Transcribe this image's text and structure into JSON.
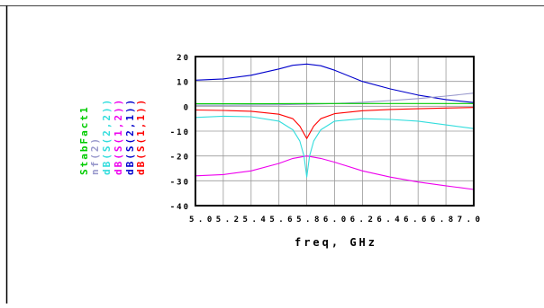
{
  "chart_data": {
    "type": "line",
    "xlabel": "freq, GHz",
    "xlim": [
      5.0,
      7.0
    ],
    "ylim": [
      -40,
      20
    ],
    "xticks": [
      "5.0",
      "5.2",
      "5.4",
      "5.6",
      "5.8",
      "6.0",
      "6.2",
      "6.4",
      "6.6",
      "6.8",
      "7.0"
    ],
    "yticks": [
      "20",
      "10",
      "0",
      "-10",
      "-20",
      "-30",
      "-40"
    ],
    "xticks_text": "5.05.25.45.65.86.06.26.46.66.87.0",
    "grid": true,
    "legend_placement": "left, rotated vertical",
    "series": [
      {
        "name": "dB(S(1,1))",
        "color": "#ff0000",
        "x": [
          5.0,
          5.2,
          5.4,
          5.6,
          5.7,
          5.75,
          5.8,
          5.85,
          5.9,
          6.0,
          6.2,
          6.4,
          6.6,
          6.8,
          7.0
        ],
        "y": [
          -1.5,
          -1.7,
          -2.0,
          -3.2,
          -5.0,
          -8.0,
          -13.0,
          -8.0,
          -5.0,
          -3.0,
          -1.8,
          -1.3,
          -1.0,
          -0.7,
          -0.5
        ]
      },
      {
        "name": "dB(S(2,1))",
        "color": "#0000cc",
        "x": [
          5.0,
          5.2,
          5.4,
          5.6,
          5.7,
          5.8,
          5.9,
          6.0,
          6.2,
          6.4,
          6.6,
          6.8,
          7.0
        ],
        "y": [
          10.5,
          11.0,
          12.5,
          15.0,
          16.5,
          17.0,
          16.3,
          14.5,
          10.0,
          7.0,
          4.5,
          2.7,
          1.5
        ]
      },
      {
        "name": "dB(S(1,2))",
        "color": "#ee00ee",
        "x": [
          5.0,
          5.2,
          5.4,
          5.6,
          5.7,
          5.8,
          5.9,
          6.0,
          6.2,
          6.4,
          6.6,
          6.8,
          7.0
        ],
        "y": [
          -28.0,
          -27.5,
          -26.0,
          -23.0,
          -21.0,
          -20.0,
          -21.0,
          -22.5,
          -26.0,
          -28.5,
          -30.5,
          -32.0,
          -33.5
        ]
      },
      {
        "name": "dB(S(2,2))",
        "color": "#33dddd",
        "x": [
          5.0,
          5.2,
          5.4,
          5.6,
          5.7,
          5.75,
          5.78,
          5.8,
          5.82,
          5.85,
          5.9,
          6.0,
          6.2,
          6.4,
          6.6,
          6.8,
          7.0
        ],
        "y": [
          -4.5,
          -4.0,
          -4.2,
          -6.0,
          -9.5,
          -14.0,
          -20.0,
          -28.5,
          -20.0,
          -14.0,
          -9.5,
          -6.0,
          -5.0,
          -5.3,
          -6.0,
          -7.5,
          -9.0
        ]
      },
      {
        "name": "nf(2)",
        "color": "#9999cc",
        "x": [
          5.0,
          5.2,
          5.4,
          5.6,
          5.8,
          6.0,
          6.2,
          6.4,
          6.6,
          6.8,
          7.0
        ],
        "y": [
          0.4,
          0.4,
          0.5,
          0.6,
          0.8,
          1.1,
          1.6,
          2.3,
          3.1,
          4.1,
          5.3
        ]
      },
      {
        "name": "StabFact1",
        "color": "#00cc00",
        "x": [
          5.0,
          5.4,
          5.8,
          6.2,
          6.6,
          7.0
        ],
        "y": [
          1.0,
          1.0,
          1.1,
          1.1,
          1.1,
          1.1
        ]
      }
    ]
  }
}
